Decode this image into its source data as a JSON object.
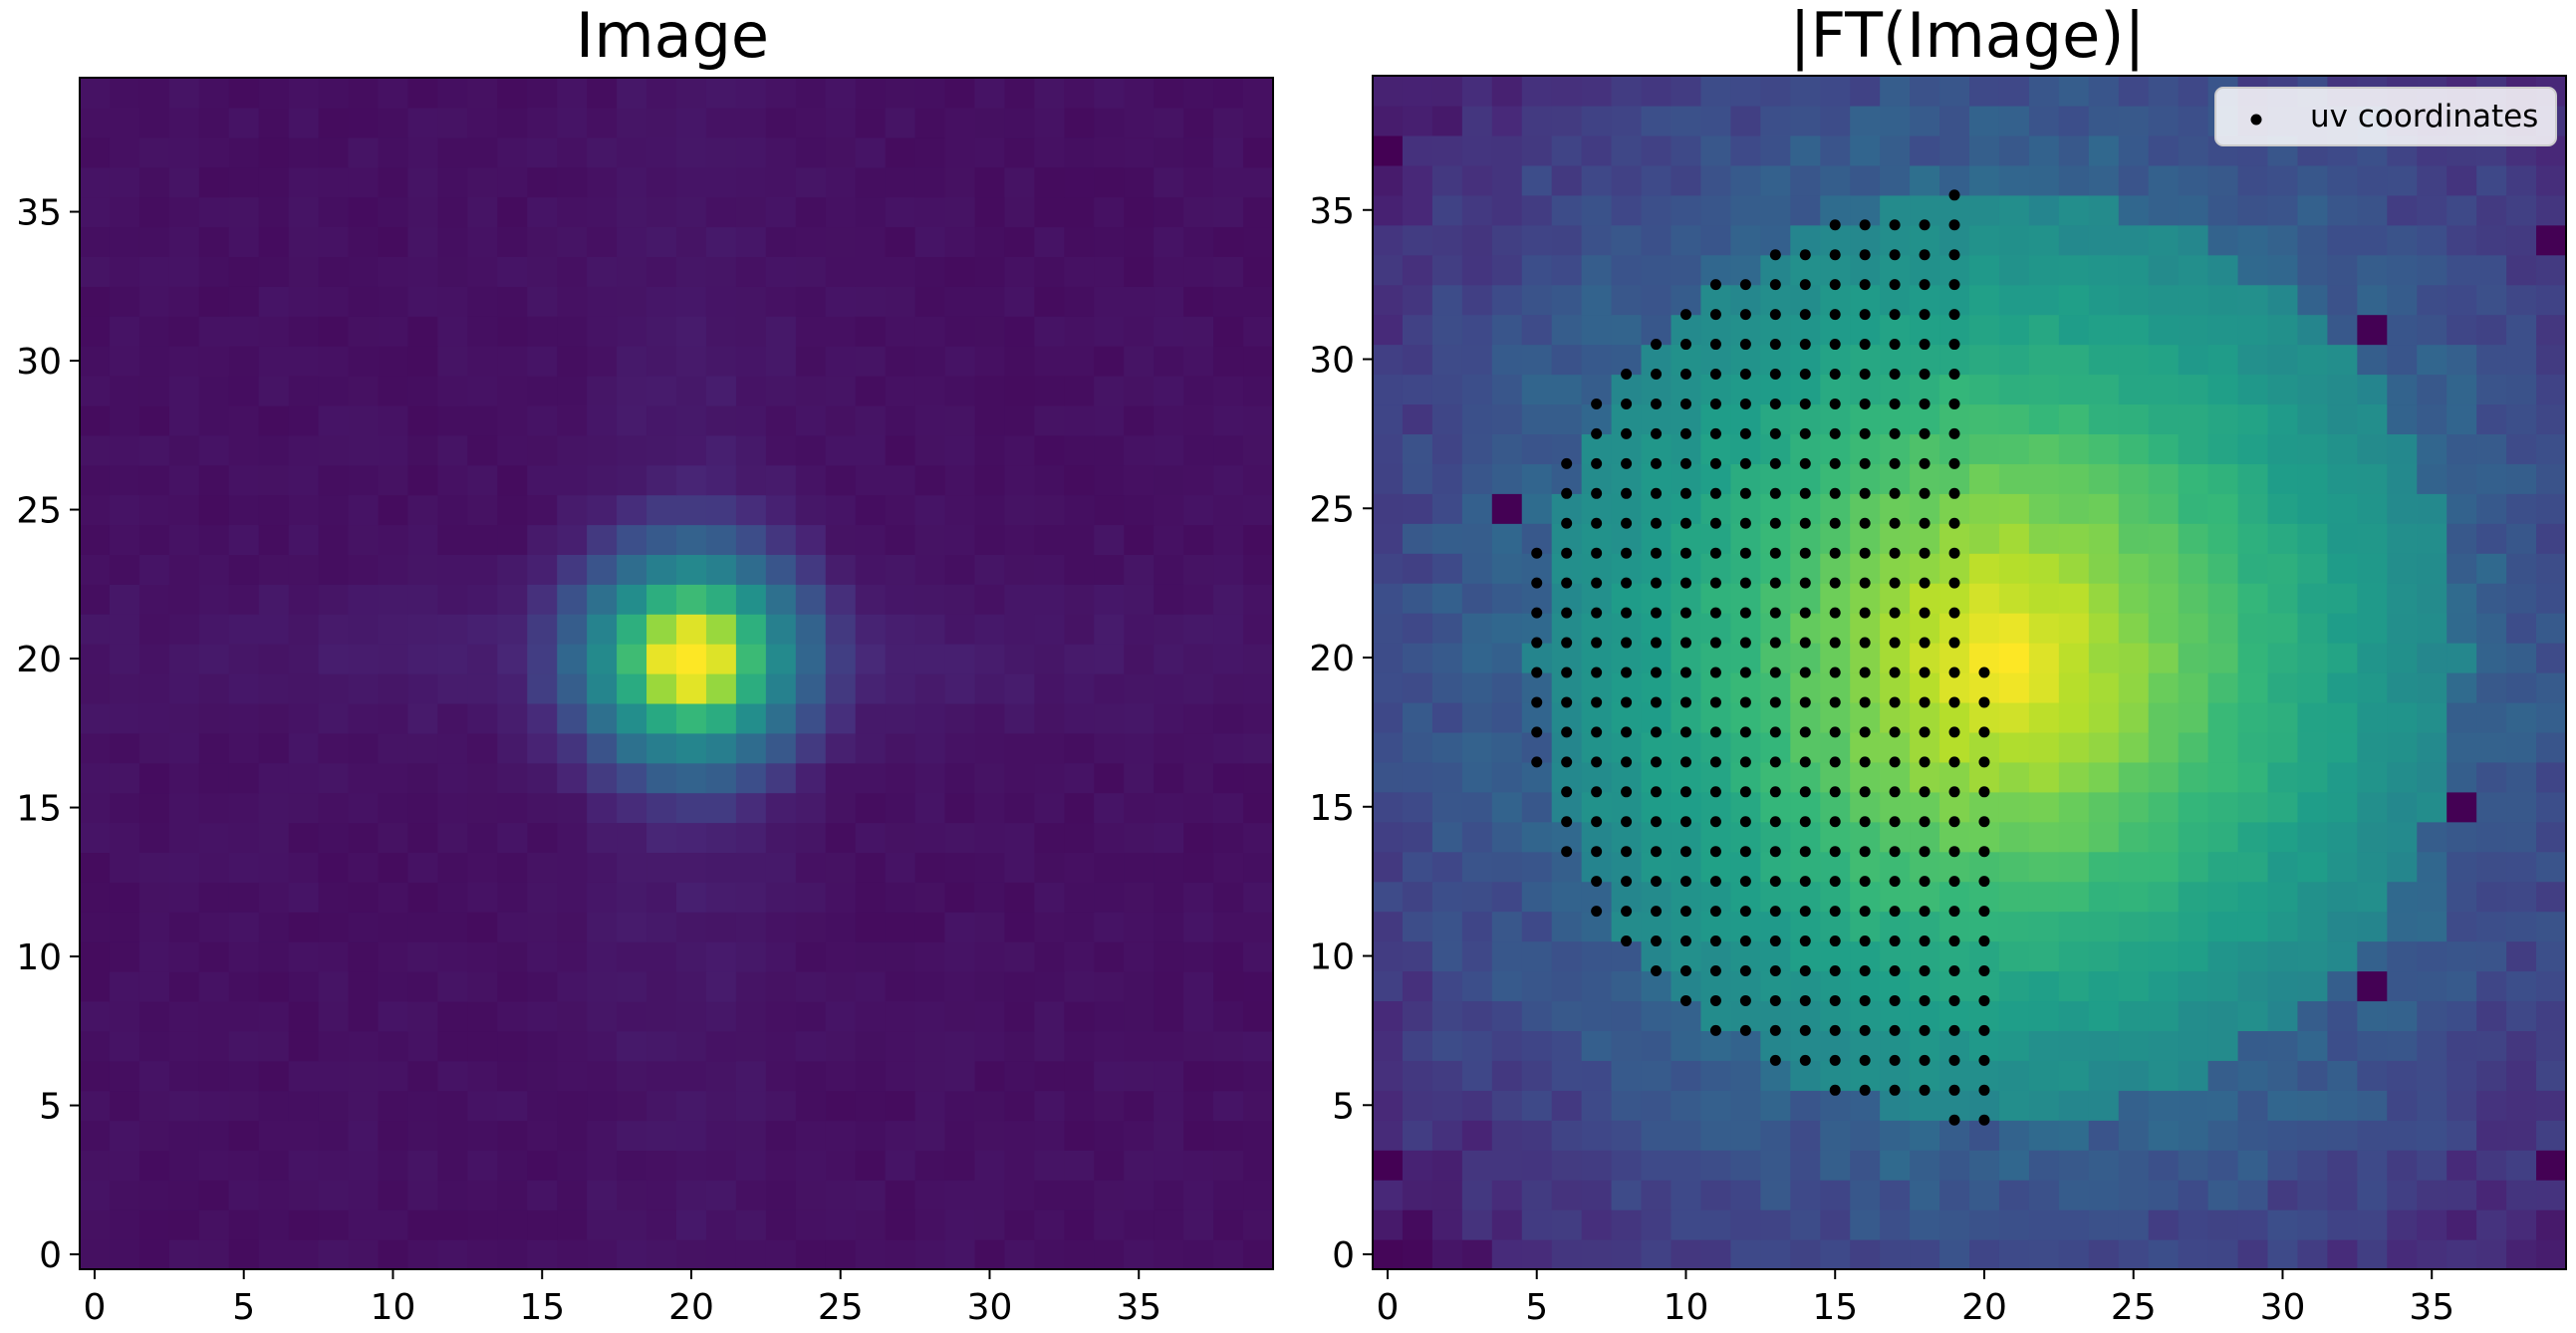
{
  "chart_data": [
    {
      "type": "heatmap",
      "title": "Image",
      "grid_size": [
        40,
        40
      ],
      "colormap": "viridis",
      "xlim": [
        -0.5,
        39.5
      ],
      "ylim": [
        -0.5,
        39.5
      ],
      "xticks": [
        "0",
        "5",
        "10",
        "15",
        "20",
        "25",
        "30",
        "35"
      ],
      "yticks": [
        "0",
        "5",
        "10",
        "15",
        "20",
        "25",
        "30",
        "35"
      ],
      "peak": {
        "x": 20,
        "y": 20,
        "value": 1.0
      },
      "background_value": 0.03,
      "features": {
        "core_sigma_pixels": 1.7,
        "halo_ring_radius_pixels": 3.5,
        "cross_arms": "faint horizontal and vertical spikes through (20, 20)"
      }
    },
    {
      "type": "heatmap",
      "title": "|FT(Image)|",
      "grid_size": [
        40,
        40
      ],
      "colormap": "viridis",
      "xlim": [
        -0.5,
        39.5
      ],
      "ylim": [
        -0.5,
        39.5
      ],
      "xticks": [
        "0",
        "5",
        "10",
        "15",
        "20",
        "25",
        "30",
        "35"
      ],
      "yticks": [
        "0",
        "5",
        "10",
        "15",
        "20",
        "25",
        "30",
        "35"
      ],
      "peak": {
        "x": 20.5,
        "y": 20,
        "value": 1.0
      },
      "disc_radius_pixels": 15.5,
      "edge_dark_pixels": [
        {
          "x": 4,
          "y": 25
        },
        {
          "x": 36,
          "y": 15
        },
        {
          "x": 0,
          "y": 37
        },
        {
          "x": 0,
          "y": 3
        },
        {
          "x": 39,
          "y": 34
        },
        {
          "x": 39,
          "y": 3
        },
        {
          "x": 33,
          "y": 31
        },
        {
          "x": 33,
          "y": 9
        }
      ],
      "scatter": {
        "name": "uv coordinates",
        "color": "#000000",
        "x_range": [
          4,
          20
        ],
        "y_range": [
          4.5,
          35.5
        ],
        "y_step": 1.0,
        "x_step": 1.0,
        "region": "left half of the disc, top rows end at x = 19, bottom rows end at x = 20"
      },
      "legend": {
        "entries": [
          "uv coordinates"
        ],
        "position": "top-right"
      }
    }
  ]
}
